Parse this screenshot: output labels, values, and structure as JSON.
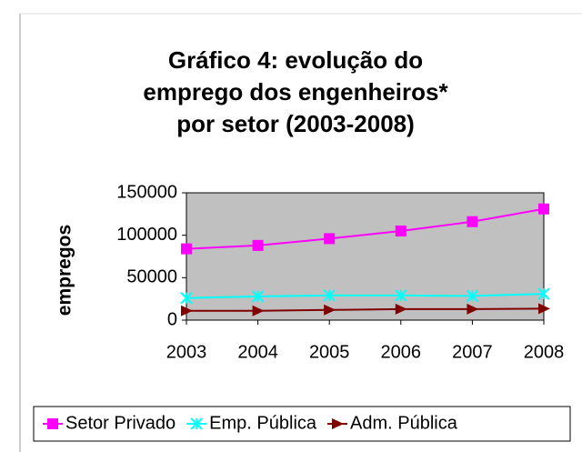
{
  "chart_data": {
    "type": "line",
    "title_lines": [
      "Gráfico 4: evolução do",
      "emprego dos engenheiros*",
      "por setor (2003-2008)"
    ],
    "ylabel": "empregos",
    "categories": [
      "2003",
      "2004",
      "2005",
      "2006",
      "2007",
      "2008"
    ],
    "series": [
      {
        "name": "Setor Privado",
        "color": "#ff00ff",
        "marker": "square",
        "values": [
          84000,
          88000,
          96000,
          105000,
          116000,
          131000
        ]
      },
      {
        "name": "Emp. Pública",
        "color": "#00ffff",
        "marker": "star",
        "values": [
          26000,
          28000,
          29000,
          29000,
          28500,
          31000
        ]
      },
      {
        "name": "Adm. Pública",
        "color": "#800000",
        "marker": "triangle",
        "values": [
          11000,
          11000,
          12000,
          13000,
          13000,
          13500
        ]
      }
    ],
    "ylim": [
      0,
      150000
    ],
    "yticks": [
      0,
      50000,
      100000,
      150000
    ],
    "grid": false,
    "plot_background": "#c0c0c0",
    "legend": "bottom"
  }
}
